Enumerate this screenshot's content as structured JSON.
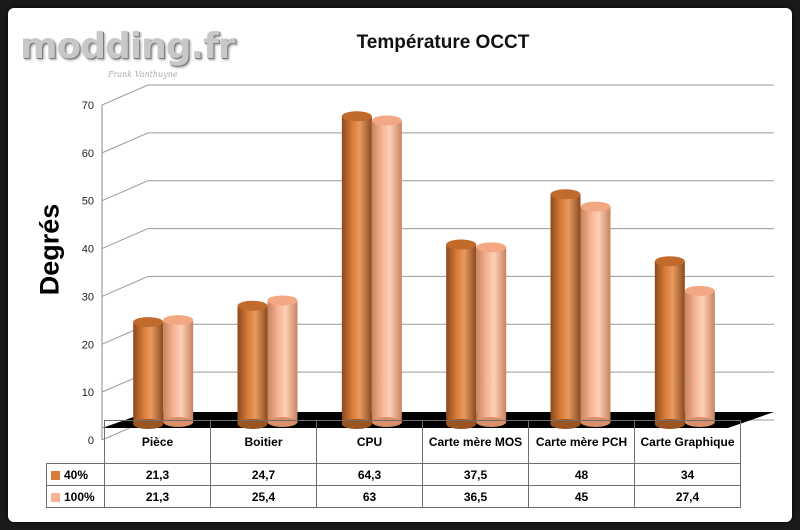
{
  "branding": {
    "logo_text": "modding.fr",
    "logo_signature": "Frank Vanthuyne"
  },
  "chart_data": {
    "type": "bar",
    "title": "Température OCCT",
    "ylabel": "Degrés",
    "xlabel": "",
    "ylim": [
      0,
      70
    ],
    "yticks": [
      0,
      10,
      20,
      30,
      40,
      50,
      60,
      70
    ],
    "categories": [
      "Pièce",
      "Boitier",
      "CPU",
      "Carte mère MOS",
      "Carte mère PCH",
      "Carte Graphique"
    ],
    "series": [
      {
        "name": "40%",
        "values": [
          21.3,
          24.7,
          64.3,
          37.5,
          48,
          34
        ],
        "labels": [
          "21,3",
          "24,7",
          "64,3",
          "37,5",
          "48",
          "34"
        ],
        "color": "#d97c38"
      },
      {
        "name": "100%",
        "values": [
          21.3,
          25.4,
          63,
          36.5,
          45,
          27.4
        ],
        "labels": [
          "21,3",
          "25,4",
          "63",
          "36,5",
          "45",
          "27,4"
        ],
        "color": "#f7b494"
      }
    ],
    "grid": true,
    "legend": "data-table"
  }
}
